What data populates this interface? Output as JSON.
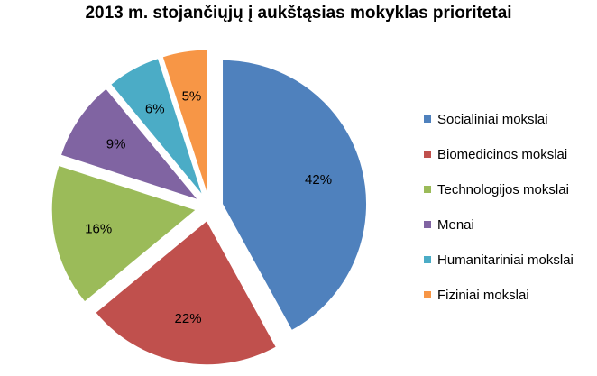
{
  "chart_data": {
    "type": "pie",
    "title": "2013 m. stojančiųjų į aukštąsias mokyklas prioritetai",
    "categories": [
      "Socialiniai mokslai",
      "Biomedicinos mokslai",
      "Technologijos mokslai",
      "Menai",
      "Humanitariniai mokslai",
      "Fiziniai mokslai"
    ],
    "values": [
      42,
      22,
      16,
      9,
      6,
      5
    ],
    "data_labels": [
      "42%",
      "22%",
      "16%",
      "9%",
      "6%",
      "5%"
    ],
    "colors": [
      "#4f81bd",
      "#c0504d",
      "#9bbb59",
      "#8064a2",
      "#4bacc6",
      "#f79646"
    ],
    "exploded": true,
    "legend_position": "right"
  }
}
